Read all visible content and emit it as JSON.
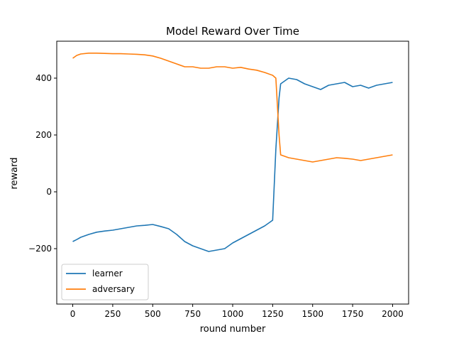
{
  "chart_data": {
    "type": "line",
    "title": "Model Reward Over Time",
    "xlabel": "round number",
    "ylabel": "reward",
    "xlim": [
      -100,
      2100
    ],
    "ylim": [
      -395,
      530
    ],
    "xticks": [
      0,
      250,
      500,
      750,
      1000,
      1250,
      1500,
      1750,
      2000
    ],
    "yticks": [
      -200,
      0,
      200,
      400
    ],
    "grid": false,
    "legend_position": "lower-left",
    "series": [
      {
        "name": "learner",
        "color": "#1f77b4",
        "x": [
          0,
          25,
          50,
          100,
          150,
          200,
          250,
          300,
          350,
          400,
          450,
          500,
          550,
          600,
          650,
          700,
          750,
          800,
          850,
          900,
          950,
          1000,
          1050,
          1100,
          1150,
          1200,
          1250,
          1270,
          1290,
          1300,
          1350,
          1400,
          1450,
          1500,
          1550,
          1600,
          1650,
          1700,
          1750,
          1800,
          1850,
          1900,
          1950,
          2000
        ],
        "y": [
          -175,
          -168,
          -160,
          -150,
          -142,
          -138,
          -135,
          -130,
          -125,
          -120,
          -118,
          -115,
          -122,
          -130,
          -150,
          -175,
          -190,
          -200,
          -210,
          -205,
          -200,
          -180,
          -165,
          -150,
          -135,
          -120,
          -100,
          150,
          330,
          380,
          400,
          395,
          380,
          370,
          360,
          375,
          380,
          385,
          370,
          375,
          365,
          375,
          380,
          385
        ]
      },
      {
        "name": "adversary",
        "color": "#ff7f0e",
        "x": [
          0,
          25,
          50,
          100,
          150,
          200,
          250,
          300,
          350,
          400,
          450,
          500,
          550,
          600,
          650,
          700,
          750,
          800,
          850,
          900,
          950,
          1000,
          1050,
          1100,
          1150,
          1200,
          1250,
          1270,
          1290,
          1300,
          1350,
          1400,
          1450,
          1500,
          1550,
          1600,
          1650,
          1700,
          1750,
          1800,
          1850,
          1900,
          1950,
          2000
        ],
        "y": [
          470,
          480,
          485,
          488,
          488,
          487,
          486,
          486,
          485,
          484,
          482,
          478,
          470,
          460,
          450,
          440,
          440,
          435,
          435,
          440,
          440,
          435,
          438,
          432,
          428,
          420,
          410,
          400,
          200,
          130,
          120,
          115,
          110,
          105,
          110,
          115,
          120,
          118,
          115,
          110,
          115,
          120,
          125,
          130
        ]
      }
    ]
  }
}
